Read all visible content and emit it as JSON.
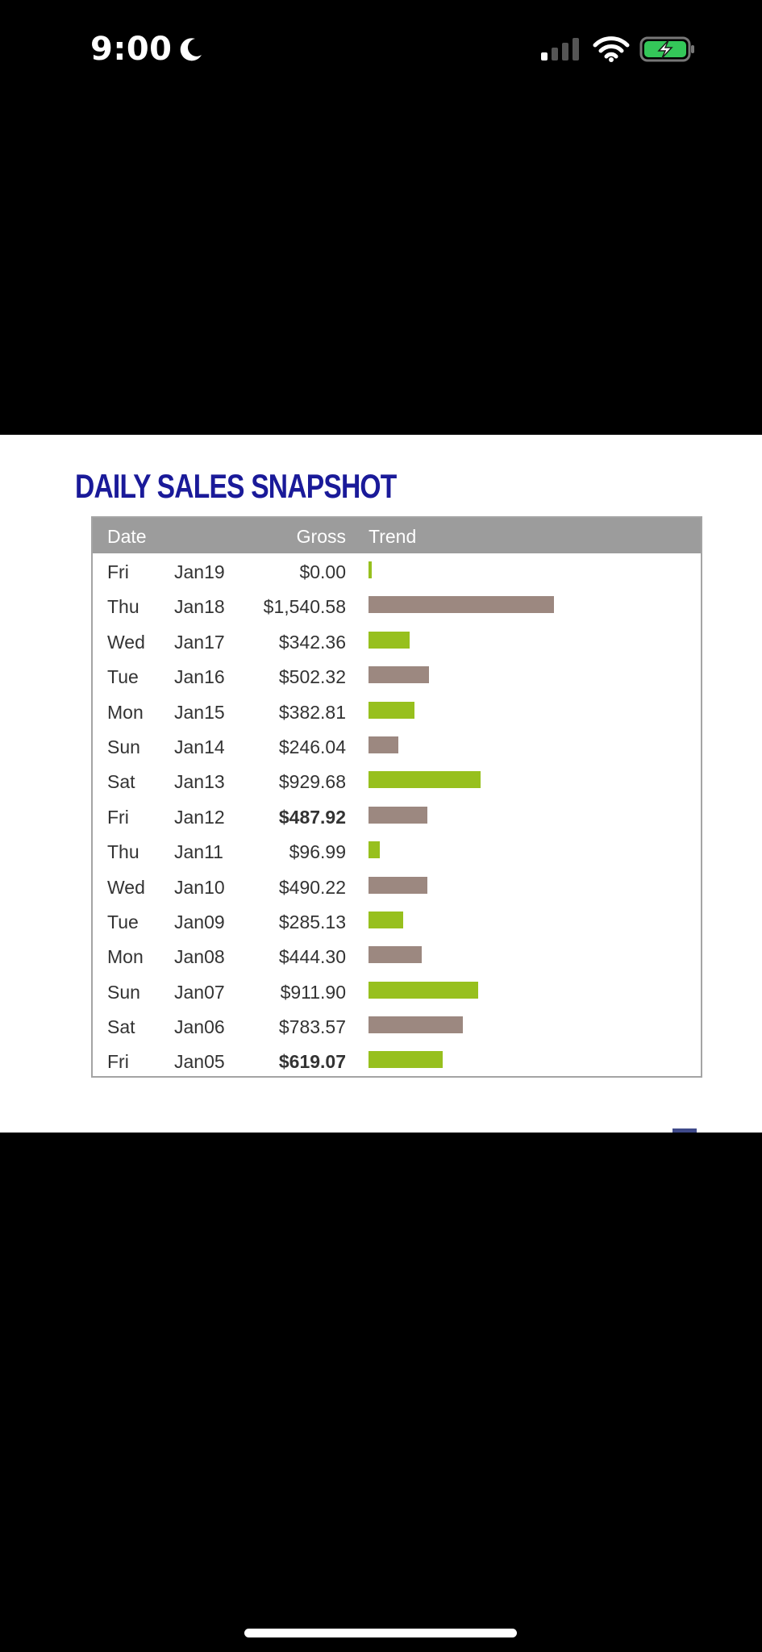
{
  "status_bar": {
    "time": "9:00",
    "icons": [
      "moon-icon",
      "signal-icon",
      "wifi-icon",
      "battery-charging-icon"
    ]
  },
  "snapshot": {
    "title": "DAILY SALES SNAPSHOT",
    "columns": {
      "date": "Date",
      "gross": "Gross",
      "trend": "Trend"
    },
    "rows": [
      {
        "day": "Fri",
        "date": "Jan19",
        "gross": "$0.00",
        "bold": false
      },
      {
        "day": "Thu",
        "date": "Jan18",
        "gross": "$1,540.58",
        "bold": false
      },
      {
        "day": "Wed",
        "date": "Jan17",
        "gross": "$342.36",
        "bold": false
      },
      {
        "day": "Tue",
        "date": "Jan16",
        "gross": "$502.32",
        "bold": false
      },
      {
        "day": "Mon",
        "date": "Jan15",
        "gross": "$382.81",
        "bold": false
      },
      {
        "day": "Sun",
        "date": "Jan14",
        "gross": "$246.04",
        "bold": false
      },
      {
        "day": "Sat",
        "date": "Jan13",
        "gross": "$929.68",
        "bold": false
      },
      {
        "day": "Fri",
        "date": "Jan12",
        "gross": "$487.92",
        "bold": true
      },
      {
        "day": "Thu",
        "date": "Jan11",
        "gross": "$96.99",
        "bold": false
      },
      {
        "day": "Wed",
        "date": "Jan10",
        "gross": "$490.22",
        "bold": false
      },
      {
        "day": "Tue",
        "date": "Jan09",
        "gross": "$285.13",
        "bold": false
      },
      {
        "day": "Mon",
        "date": "Jan08",
        "gross": "$444.30",
        "bold": false
      },
      {
        "day": "Sun",
        "date": "Jan07",
        "gross": "$911.90",
        "bold": false
      },
      {
        "day": "Sat",
        "date": "Jan06",
        "gross": "$783.57",
        "bold": false
      },
      {
        "day": "Fri",
        "date": "Jan05",
        "gross": "$619.07",
        "bold": true
      }
    ],
    "colors": {
      "green": "#97c01e",
      "brown": "#9c8880",
      "header": "#9c9c9c",
      "title": "#1a1a99"
    }
  },
  "chart_data": {
    "type": "bar",
    "categories": [
      "Jan19",
      "Jan18",
      "Jan17",
      "Jan16",
      "Jan15",
      "Jan14",
      "Jan13",
      "Jan12",
      "Jan11",
      "Jan10",
      "Jan09",
      "Jan08",
      "Jan07",
      "Jan06",
      "Jan05"
    ],
    "values": [
      0.0,
      1540.58,
      342.36,
      502.32,
      382.81,
      246.04,
      929.68,
      487.92,
      96.99,
      490.22,
      285.13,
      444.3,
      911.9,
      783.57,
      619.07
    ],
    "title": "DAILY SALES SNAPSHOT",
    "xlabel": "",
    "ylabel": "",
    "orientation": "horizontal"
  }
}
